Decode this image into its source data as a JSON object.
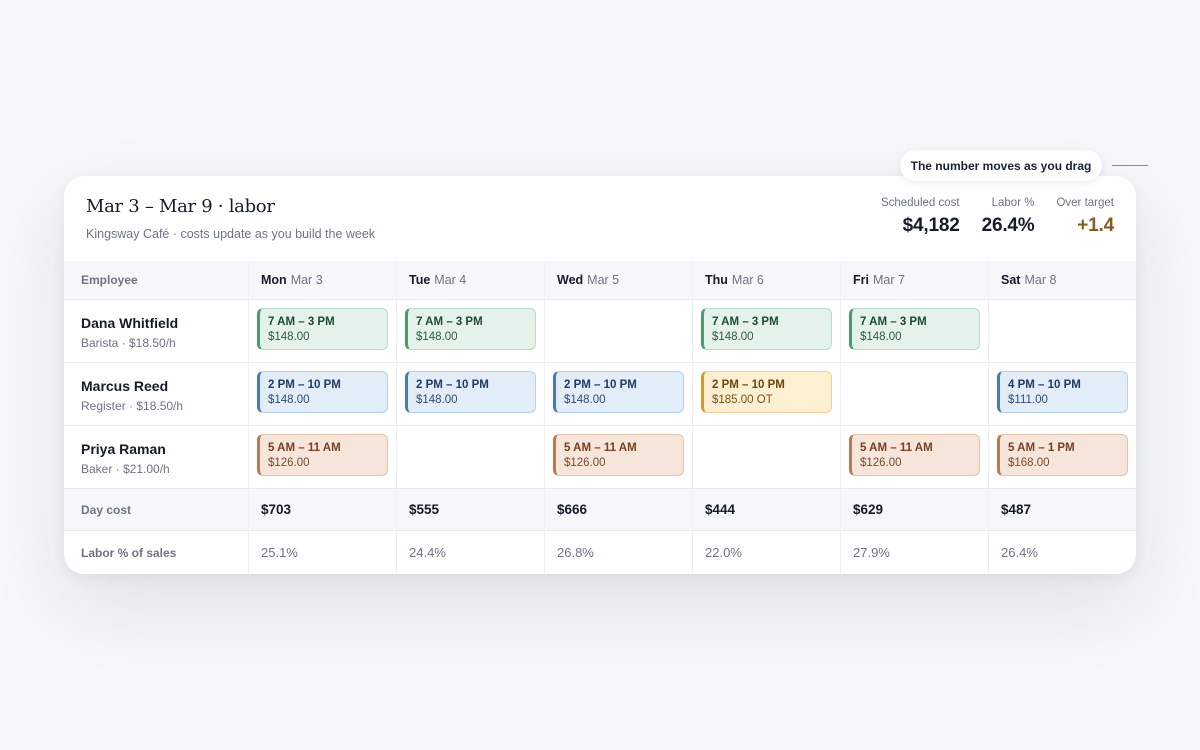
{
  "tooltip": "The number moves as you drag",
  "header": {
    "title": "Mar 3 – Mar 9 · labor",
    "subtitle": "Kingsway Café · costs update as you build the week"
  },
  "stats": [
    {
      "label": "Scheduled cost",
      "value": "$4,182",
      "tone": "normal"
    },
    {
      "label": "Labor %",
      "value": "26.4%",
      "tone": "normal"
    },
    {
      "label": "Over target",
      "value": "+1.4",
      "tone": "warn"
    }
  ],
  "columns": {
    "employee_label": "Employee",
    "days": [
      {
        "dow": "Mon",
        "date": "Mar 3"
      },
      {
        "dow": "Tue",
        "date": "Mar 4"
      },
      {
        "dow": "Wed",
        "date": "Mar 5"
      },
      {
        "dow": "Thu",
        "date": "Mar 6"
      },
      {
        "dow": "Fri",
        "date": "Mar 7"
      },
      {
        "dow": "Sat",
        "date": "Mar 8"
      }
    ]
  },
  "employees": [
    {
      "name": "Dana Whitfield",
      "role": "Barista · $18.50/h",
      "shifts": [
        {
          "time": "7 AM – 3 PM",
          "cost": "$148.00",
          "color": "green"
        },
        {
          "time": "7 AM – 3 PM",
          "cost": "$148.00",
          "color": "green"
        },
        null,
        {
          "time": "7 AM – 3 PM",
          "cost": "$148.00",
          "color": "green"
        },
        {
          "time": "7 AM – 3 PM",
          "cost": "$148.00",
          "color": "green"
        },
        null
      ]
    },
    {
      "name": "Marcus Reed",
      "role": "Register · $18.50/h",
      "shifts": [
        {
          "time": "2 PM – 10 PM",
          "cost": "$148.00",
          "color": "blue"
        },
        {
          "time": "2 PM – 10 PM",
          "cost": "$148.00",
          "color": "blue"
        },
        {
          "time": "2 PM – 10 PM",
          "cost": "$148.00",
          "color": "blue"
        },
        {
          "time": "2 PM – 10 PM",
          "cost": "$185.00 OT",
          "color": "amber"
        },
        null,
        {
          "time": "4 PM – 10 PM",
          "cost": "$111.00",
          "color": "blue"
        }
      ]
    },
    {
      "name": "Priya Raman",
      "role": "Baker · $21.00/h",
      "shifts": [
        {
          "time": "5 AM – 11 AM",
          "cost": "$126.00",
          "color": "orange"
        },
        null,
        {
          "time": "5 AM – 11 AM",
          "cost": "$126.00",
          "color": "orange"
        },
        null,
        {
          "time": "5 AM – 11 AM",
          "cost": "$126.00",
          "color": "orange"
        },
        {
          "time": "5 AM – 1 PM",
          "cost": "$168.00",
          "color": "orange"
        }
      ]
    }
  ],
  "day_cost": {
    "label": "Day cost",
    "values": [
      "$703",
      "$555",
      "$666",
      "$444",
      "$629",
      "$487"
    ]
  },
  "labor_pct": {
    "label": "Labor % of sales",
    "values": [
      "25.1%",
      "24.4%",
      "26.8%",
      "22.0%",
      "27.9%",
      "26.4%"
    ]
  }
}
